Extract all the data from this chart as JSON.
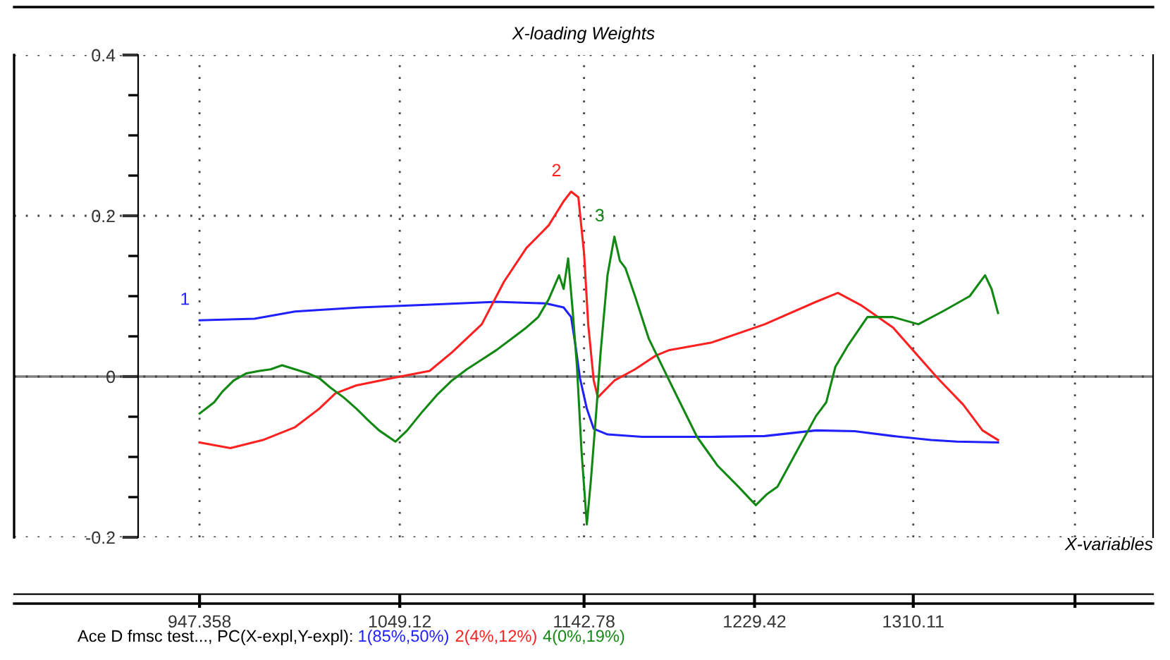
{
  "chart_data": {
    "type": "line",
    "title": "X-loading Weights",
    "xlabel": "X-variables",
    "xlim": [
      853.1,
      1432
    ],
    "ylim": [
      -0.2,
      0.4
    ],
    "xticks": [
      947.358,
      1049.12,
      1142.78,
      1229.42,
      1310.11,
      {
        "value": 1392.3,
        "label": null
      }
    ],
    "yticks": [
      0.4,
      0.2,
      0,
      -0.2
    ],
    "grid": true,
    "line_style": "solid",
    "marker": "none",
    "ref_lines": [
      {
        "axis": "y",
        "value": 0,
        "color": "#808080"
      }
    ],
    "series": [
      {
        "name": "1",
        "color": "#2020ff",
        "x": [
          947.4,
          975.3,
          995.9,
          1028.8,
          1060.5,
          1098.3,
          1123.3,
          1132.4,
          1136.2,
          1138.4,
          1140.7,
          1144.2,
          1147.7,
          1154.7,
          1172.2,
          1207.2,
          1234.6,
          1260.7,
          1280.3,
          1299.8,
          1319.2,
          1332.3,
          1353.2
        ],
        "values": [
          0.07,
          0.072,
          0.081,
          0.086,
          0.089,
          0.093,
          0.091,
          0.086,
          0.074,
          0.039,
          -0.002,
          -0.04,
          -0.065,
          -0.072,
          -0.075,
          -0.075,
          -0.074,
          -0.067,
          -0.068,
          -0.074,
          -0.079,
          -0.081,
          -0.082
        ]
      },
      {
        "name": "2",
        "color": "#ff2020",
        "x": [
          947.4,
          963.0,
          979.5,
          995.9,
          1008.2,
          1016.4,
          1027.1,
          1045.2,
          1064.3,
          1075.6,
          1090.8,
          1102.1,
          1113.5,
          1124.8,
          1132.4,
          1136.2,
          1139.9,
          1142.8,
          1144.9,
          1147.7,
          1149.8,
          1158.2,
          1168.7,
          1179.2,
          1186.2,
          1207.2,
          1234.6,
          1260.7,
          1271.8,
          1283.4,
          1299.8,
          1316.0,
          1322.5,
          1335.5,
          1345.3,
          1353.2
        ],
        "values": [
          -0.082,
          -0.089,
          -0.079,
          -0.063,
          -0.04,
          -0.021,
          -0.011,
          -0.002,
          0.007,
          0.03,
          0.065,
          0.118,
          0.16,
          0.188,
          0.218,
          0.23,
          0.223,
          0.153,
          0.065,
          -0.005,
          -0.026,
          -0.005,
          0.009,
          0.026,
          0.033,
          0.042,
          0.065,
          0.093,
          0.104,
          0.089,
          0.061,
          0.016,
          -0.002,
          -0.035,
          -0.067,
          -0.079
        ]
      },
      {
        "name": "3",
        "color": "#118811",
        "x": [
          947.4,
          954.8,
          958.9,
          964.7,
          971.2,
          977.8,
          983.5,
          989.3,
          995.9,
          1002.5,
          1008.2,
          1014.0,
          1020.6,
          1027.1,
          1032.9,
          1038.6,
          1046.9,
          1052.9,
          1060.5,
          1068.0,
          1075.6,
          1083.2,
          1090.8,
          1098.3,
          1105.9,
          1113.5,
          1119.5,
          1124.8,
          1130.1,
          1132.4,
          1134.7,
          1137.0,
          1139.2,
          1141.5,
          1144.2,
          1146.3,
          1149.1,
          1151.2,
          1154.7,
          1158.2,
          1161.0,
          1163.8,
          1168.7,
          1175.7,
          1182.7,
          1189.7,
          1200.2,
          1210.7,
          1221.2,
          1230.1,
          1235.9,
          1241.1,
          1250.9,
          1260.7,
          1265.9,
          1270.5,
          1277.0,
          1286.8,
          1299.8,
          1312.7,
          1325.8,
          1338.8,
          1346.6,
          1349.9,
          1353.2
        ],
        "values": [
          -0.046,
          -0.032,
          -0.019,
          -0.005,
          0.004,
          0.007,
          0.009,
          0.014,
          0.009,
          0.004,
          -0.002,
          -0.014,
          -0.026,
          -0.04,
          -0.054,
          -0.067,
          -0.081,
          -0.067,
          -0.044,
          -0.023,
          -0.005,
          0.009,
          0.021,
          0.033,
          0.047,
          0.061,
          0.074,
          0.096,
          0.126,
          0.109,
          0.147,
          0.082,
          0.012,
          -0.093,
          -0.184,
          -0.128,
          -0.04,
          0.03,
          0.126,
          0.174,
          0.144,
          0.135,
          0.1,
          0.047,
          0.012,
          -0.023,
          -0.075,
          -0.111,
          -0.137,
          -0.16,
          -0.146,
          -0.137,
          -0.093,
          -0.049,
          -0.032,
          0.012,
          0.039,
          0.074,
          0.074,
          0.065,
          0.082,
          0.1,
          0.126,
          0.109,
          0.079
        ]
      }
    ],
    "annotations": [
      "Ace D fmsc test..., PC(X-expl,Y-expl):",
      "1(85%,50%)",
      "2(4%,12%)",
      "4(0%,19%)"
    ]
  }
}
